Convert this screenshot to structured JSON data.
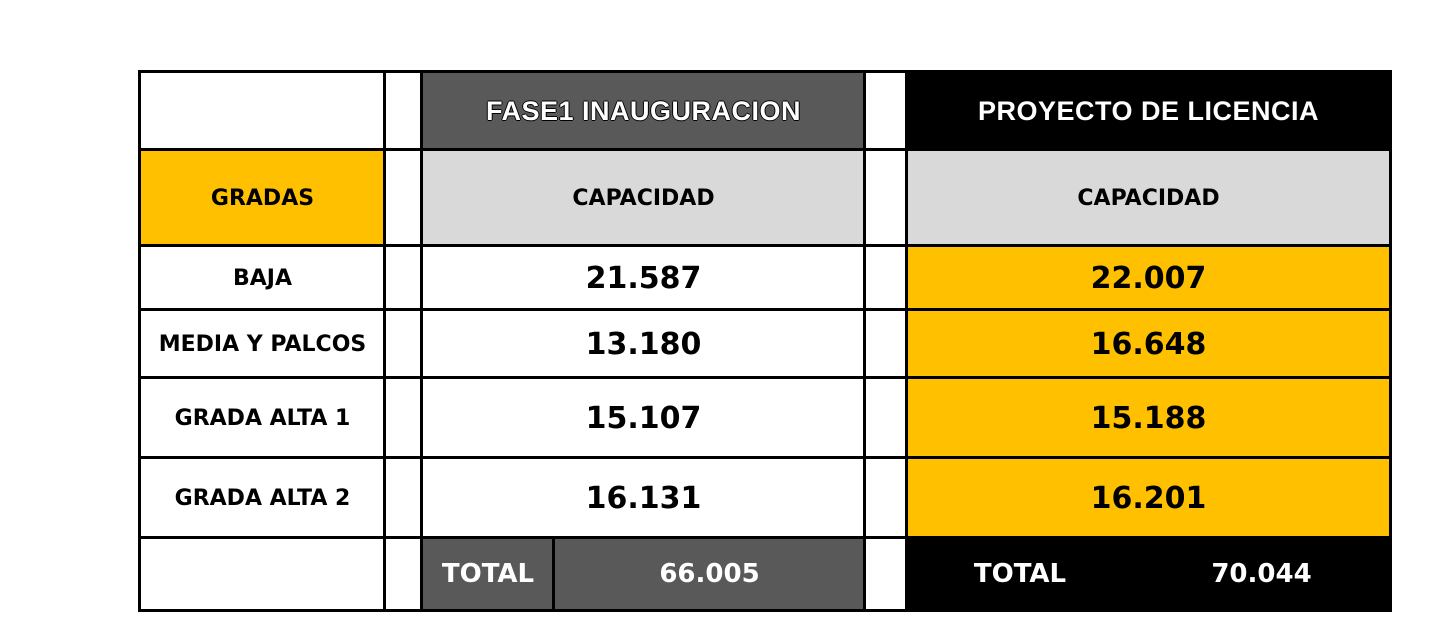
{
  "colors": {
    "orange": "#FFC000",
    "dark_gray": "#595959",
    "light_gray": "#D9D9D9",
    "black": "#000000"
  },
  "headers": {
    "phase1": "FASE1 INAUGURACION",
    "project": "PROYECTO DE LICENCIA"
  },
  "gradas_label": "GRADAS",
  "capacity_label_1": "CAPACIDAD",
  "capacity_label_2": "CAPACIDAD",
  "rows": [
    {
      "name": "BAJA",
      "phase1": "21.587",
      "project": "22.007"
    },
    {
      "name": "MEDIA Y PALCOS",
      "phase1": "13.180",
      "project": "16.648"
    },
    {
      "name": "GRADA ALTA 1",
      "phase1": "15.107",
      "project": "15.188"
    },
    {
      "name": "GRADA ALTA 2",
      "phase1": "16.131",
      "project": "16.201"
    }
  ],
  "totals": {
    "phase1_label": "TOTAL",
    "phase1_value": "66.005",
    "project_label": "TOTAL",
    "project_value": "70.044"
  }
}
